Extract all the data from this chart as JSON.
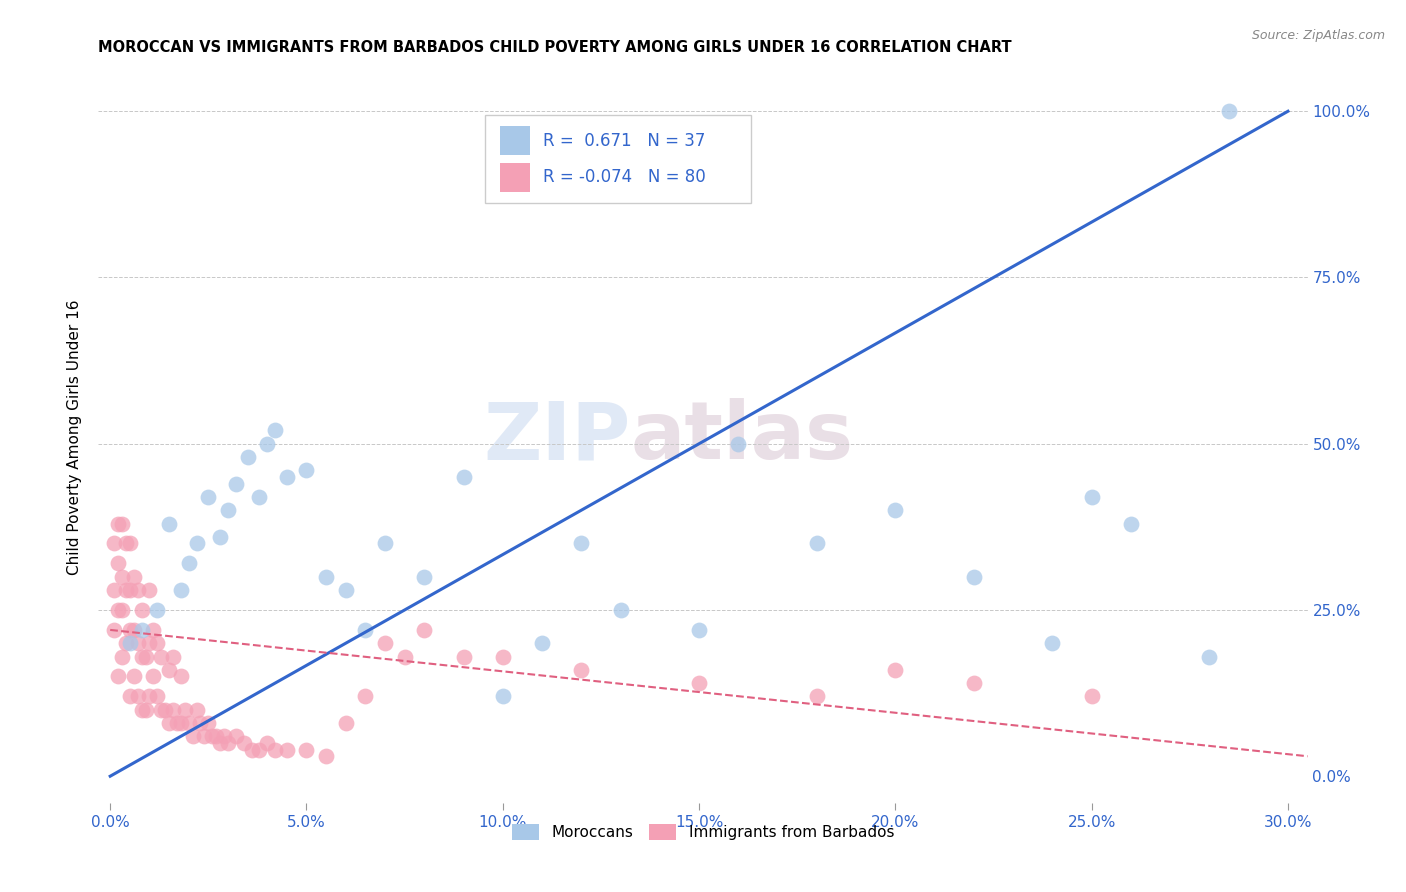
{
  "title": "MOROCCAN VS IMMIGRANTS FROM BARBADOS CHILD POVERTY AMONG GIRLS UNDER 16 CORRELATION CHART",
  "source": "Source: ZipAtlas.com",
  "xlabel_ticks": [
    "0.0%",
    "5.0%",
    "10.0%",
    "15.0%",
    "20.0%",
    "25.0%",
    "30.0%"
  ],
  "ylabel_ticks": [
    "0.0%",
    "25.0%",
    "50.0%",
    "75.0%",
    "100.0%"
  ],
  "xlim": [
    -0.003,
    0.305
  ],
  "ylim": [
    -0.04,
    1.06
  ],
  "ylabel": "Child Poverty Among Girls Under 16",
  "legend_moroccan": "Moroccans",
  "legend_barbados": "Immigrants from Barbados",
  "R_moroccan": "0.671",
  "N_moroccan": "37",
  "R_barbados": "-0.074",
  "N_barbados": "80",
  "color_moroccan": "#a8c8e8",
  "color_barbados": "#f4a0b5",
  "color_line_moroccan": "#3366cc",
  "color_line_barbados": "#e06080",
  "color_text_blue": "#3366cc",
  "color_grid": "#c8c8c8",
  "watermark_zip": "ZIP",
  "watermark_atlas": "atlas",
  "moroccan_x": [
    0.005,
    0.008,
    0.012,
    0.015,
    0.018,
    0.02,
    0.022,
    0.025,
    0.028,
    0.03,
    0.032,
    0.035,
    0.038,
    0.04,
    0.042,
    0.045,
    0.05,
    0.055,
    0.06,
    0.065,
    0.07,
    0.08,
    0.09,
    0.1,
    0.11,
    0.12,
    0.13,
    0.15,
    0.16,
    0.18,
    0.2,
    0.22,
    0.24,
    0.25,
    0.26,
    0.28,
    0.285
  ],
  "moroccan_y": [
    0.2,
    0.22,
    0.25,
    0.38,
    0.28,
    0.32,
    0.35,
    0.42,
    0.36,
    0.4,
    0.44,
    0.48,
    0.42,
    0.5,
    0.52,
    0.45,
    0.46,
    0.3,
    0.28,
    0.22,
    0.35,
    0.3,
    0.45,
    0.12,
    0.2,
    0.35,
    0.25,
    0.22,
    0.5,
    0.35,
    0.4,
    0.3,
    0.2,
    0.42,
    0.38,
    0.18,
    1.0
  ],
  "barbados_x": [
    0.001,
    0.001,
    0.001,
    0.002,
    0.002,
    0.002,
    0.002,
    0.003,
    0.003,
    0.003,
    0.003,
    0.004,
    0.004,
    0.004,
    0.005,
    0.005,
    0.005,
    0.005,
    0.006,
    0.006,
    0.006,
    0.007,
    0.007,
    0.007,
    0.008,
    0.008,
    0.008,
    0.009,
    0.009,
    0.01,
    0.01,
    0.01,
    0.011,
    0.011,
    0.012,
    0.012,
    0.013,
    0.013,
    0.014,
    0.015,
    0.015,
    0.016,
    0.016,
    0.017,
    0.018,
    0.018,
    0.019,
    0.02,
    0.021,
    0.022,
    0.023,
    0.024,
    0.025,
    0.026,
    0.027,
    0.028,
    0.029,
    0.03,
    0.032,
    0.034,
    0.036,
    0.038,
    0.04,
    0.042,
    0.045,
    0.05,
    0.055,
    0.06,
    0.065,
    0.07,
    0.075,
    0.08,
    0.09,
    0.1,
    0.12,
    0.15,
    0.18,
    0.2,
    0.22,
    0.25
  ],
  "barbados_y": [
    0.22,
    0.28,
    0.35,
    0.15,
    0.25,
    0.32,
    0.38,
    0.18,
    0.25,
    0.3,
    0.38,
    0.2,
    0.28,
    0.35,
    0.12,
    0.22,
    0.28,
    0.35,
    0.15,
    0.22,
    0.3,
    0.12,
    0.2,
    0.28,
    0.1,
    0.18,
    0.25,
    0.1,
    0.18,
    0.12,
    0.2,
    0.28,
    0.15,
    0.22,
    0.12,
    0.2,
    0.1,
    0.18,
    0.1,
    0.08,
    0.16,
    0.1,
    0.18,
    0.08,
    0.08,
    0.15,
    0.1,
    0.08,
    0.06,
    0.1,
    0.08,
    0.06,
    0.08,
    0.06,
    0.06,
    0.05,
    0.06,
    0.05,
    0.06,
    0.05,
    0.04,
    0.04,
    0.05,
    0.04,
    0.04,
    0.04,
    0.03,
    0.08,
    0.12,
    0.2,
    0.18,
    0.22,
    0.18,
    0.18,
    0.16,
    0.14,
    0.12,
    0.16,
    0.14,
    0.12
  ],
  "moroccan_trendline_x": [
    0.0,
    0.3
  ],
  "moroccan_trendline_y": [
    0.0,
    1.0
  ],
  "barbados_trendline_x": [
    0.0,
    0.305
  ],
  "barbados_trendline_y": [
    0.22,
    0.03
  ]
}
